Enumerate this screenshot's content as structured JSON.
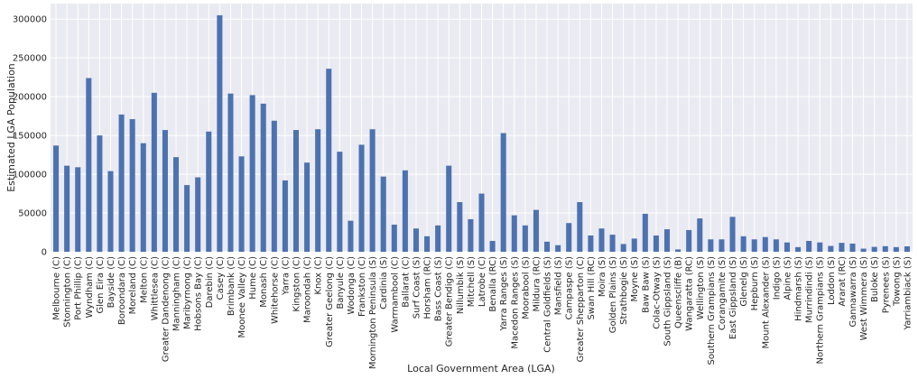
{
  "chart_data": {
    "type": "bar",
    "title": "",
    "xlabel": "Local Government Area (LGA)",
    "ylabel": "Estimated LGA Population",
    "ylim": [
      0,
      320000
    ],
    "yticks": [
      0,
      50000,
      100000,
      150000,
      200000,
      250000,
      300000
    ],
    "grid": true,
    "legend": "none",
    "bar_color": "#4c72b0",
    "background_color": "#eaeaf2",
    "grid_color": "#ffffff",
    "categories": [
      "Melbourne (C)",
      "Stonnington (C)",
      "Port Phillip (C)",
      "Wyndham (C)",
      "Glen Eira (C)",
      "Bayside (C)",
      "Boroondara (C)",
      "Moreland (C)",
      "Melton (C)",
      "Whittlesea (C)",
      "Greater Dandenong (C)",
      "Manningham (C)",
      "Maribyrnong (C)",
      "Hobsons Bay (C)",
      "Darebin (C)",
      "Casey (C)",
      "Brimbank (C)",
      "Moonee Valley (C)",
      "Hume (C)",
      "Monash (C)",
      "Whitehorse (C)",
      "Yarra (C)",
      "Kingston (C)",
      "Maroondah (C)",
      "Knox (C)",
      "Greater Geelong (C)",
      "Banyule (C)",
      "Wodonga (C)",
      "Frankston (C)",
      "Mornington Peninsula (S)",
      "Cardinia (S)",
      "Warrnambool (C)",
      "Ballarat (C)",
      "Surf Coast (S)",
      "Horsham (RC)",
      "Bass Coast (S)",
      "Greater Bendigo (C)",
      "Nillumbik (S)",
      "Mitchell (S)",
      "Latrobe (C)",
      "Benalla (RC)",
      "Yarra Ranges (S)",
      "Macedon Ranges (S)",
      "Moorabool (S)",
      "Mildura (RC)",
      "Central Goldfields (S)",
      "Mansfield (S)",
      "Campaspe (S)",
      "Greater Shepparton (C)",
      "Swan Hill (RC)",
      "Moira (S)",
      "Golden Plains (S)",
      "Strathbogie (S)",
      "Moyne (S)",
      "Baw Baw (S)",
      "Colac-Otway (S)",
      "South Gippsland (S)",
      "Queenscliffe (B)",
      "Wangaratta (RC)",
      "Wellington (S)",
      "Southern Grampians (S)",
      "Corangamite (S)",
      "East Gippsland (S)",
      "Glenelg (S)",
      "Hepburn (S)",
      "Mount Alexander (S)",
      "Indigo (S)",
      "Alpine (S)",
      "Hindmarsh (S)",
      "Murrindindi (S)",
      "Northern Grampians (S)",
      "Loddon (S)",
      "Ararat (RC)",
      "Gannawarra (S)",
      "West Wimmera (S)",
      "Buloke (S)",
      "Pyrenees (S)",
      "Towong (S)",
      "Yarriambiack (S)"
    ],
    "values": [
      137000,
      111000,
      109000,
      224000,
      150000,
      104000,
      177000,
      171000,
      140000,
      205000,
      157000,
      122000,
      86000,
      96000,
      155000,
      305000,
      204000,
      123000,
      202000,
      191000,
      169000,
      92000,
      157000,
      115000,
      158000,
      236000,
      129000,
      40000,
      138000,
      158000,
      97000,
      35000,
      105000,
      30000,
      20000,
      34000,
      111000,
      64000,
      42000,
      75000,
      14000,
      153000,
      47000,
      34000,
      54000,
      13000,
      8500,
      37000,
      64000,
      21000,
      30000,
      22000,
      10000,
      17000,
      49000,
      21000,
      29000,
      3000,
      28000,
      43000,
      16000,
      16000,
      45000,
      20000,
      16000,
      19000,
      16000,
      12000,
      6000,
      14000,
      12000,
      7500,
      11500,
      10500,
      4000,
      6300,
      7200,
      6000,
      7000
    ]
  }
}
